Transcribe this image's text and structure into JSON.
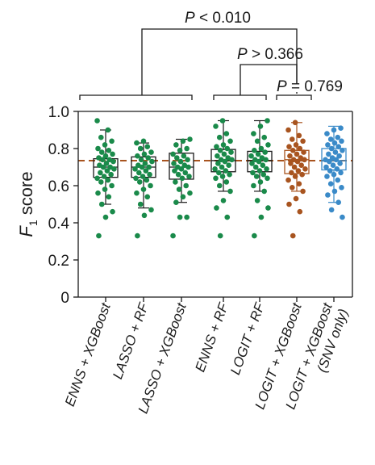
{
  "chart_data": {
    "type": "box",
    "ylabel": "F",
    "ylabel_subscript": "1",
    "ylabel_suffix": " score",
    "ylim": [
      0,
      1.0
    ],
    "yticks": [
      0,
      0.2,
      0.4,
      0.6,
      0.8,
      1.0
    ],
    "ytick_labels": [
      "0",
      "0.2",
      "0.4",
      "0.6",
      "0.8",
      "1.0"
    ],
    "reference_line": {
      "y": 0.735,
      "color": "#a8541f",
      "style": "dashed"
    },
    "categories": [
      "ENNS + XGBoost",
      "LASSO + RF",
      "LASSO + XGBoost",
      "ENNS + RF",
      "LOGIT + RF",
      "LOGIT + XGBoost",
      "LOGIT + XGBoost (SNV only)"
    ],
    "category_lines": [
      [
        "ENNS + XGBoost"
      ],
      [
        "LASSO + RF"
      ],
      [
        "LASSO + XGBoost"
      ],
      [
        "ENNS + RF"
      ],
      [
        "LOGIT + RF"
      ],
      [
        "LOGIT + XGBoost"
      ],
      [
        "LOGIT + XGBoost",
        "(SNV only)"
      ]
    ],
    "colors": [
      "#1a8a4a",
      "#1a8a4a",
      "#1a8a4a",
      "#1a8a4a",
      "#1a8a4a",
      "#a8541f",
      "#3a8ac8"
    ],
    "box_stats": [
      {
        "min": 0.5,
        "q1": 0.645,
        "median": 0.7,
        "q3": 0.745,
        "max": 0.9
      },
      {
        "min": 0.48,
        "q1": 0.645,
        "median": 0.7,
        "q3": 0.755,
        "max": 0.83
      },
      {
        "min": 0.51,
        "q1": 0.635,
        "median": 0.7,
        "q3": 0.775,
        "max": 0.85
      },
      {
        "min": 0.57,
        "q1": 0.675,
        "median": 0.735,
        "q3": 0.795,
        "max": 0.95
      },
      {
        "min": 0.57,
        "q1": 0.675,
        "median": 0.735,
        "q3": 0.785,
        "max": 0.95
      },
      {
        "min": 0.57,
        "q1": 0.665,
        "median": 0.74,
        "q3": 0.79,
        "max": 0.94
      },
      {
        "min": 0.51,
        "q1": 0.685,
        "median": 0.735,
        "q3": 0.8,
        "max": 0.92
      }
    ],
    "points": [
      [
        0.95,
        0.9,
        0.86,
        0.84,
        0.82,
        0.8,
        0.79,
        0.78,
        0.77,
        0.76,
        0.75,
        0.74,
        0.74,
        0.73,
        0.72,
        0.71,
        0.7,
        0.7,
        0.69,
        0.68,
        0.67,
        0.66,
        0.65,
        0.64,
        0.63,
        0.62,
        0.6,
        0.58,
        0.56,
        0.54,
        0.5,
        0.46,
        0.43,
        0.33
      ],
      [
        0.84,
        0.83,
        0.81,
        0.8,
        0.78,
        0.77,
        0.76,
        0.75,
        0.74,
        0.73,
        0.72,
        0.71,
        0.7,
        0.7,
        0.69,
        0.68,
        0.67,
        0.66,
        0.65,
        0.64,
        0.63,
        0.62,
        0.6,
        0.58,
        0.56,
        0.54,
        0.5,
        0.47,
        0.44,
        0.33
      ],
      [
        0.85,
        0.84,
        0.82,
        0.8,
        0.79,
        0.77,
        0.76,
        0.75,
        0.74,
        0.73,
        0.72,
        0.71,
        0.7,
        0.7,
        0.69,
        0.68,
        0.67,
        0.66,
        0.65,
        0.64,
        0.62,
        0.6,
        0.58,
        0.56,
        0.54,
        0.51,
        0.43,
        0.43,
        0.33
      ],
      [
        0.95,
        0.92,
        0.88,
        0.86,
        0.84,
        0.82,
        0.81,
        0.8,
        0.79,
        0.78,
        0.77,
        0.76,
        0.75,
        0.74,
        0.74,
        0.73,
        0.72,
        0.71,
        0.7,
        0.69,
        0.68,
        0.67,
        0.66,
        0.65,
        0.64,
        0.62,
        0.6,
        0.57,
        0.52,
        0.48,
        0.43,
        0.33
      ],
      [
        0.95,
        0.92,
        0.88,
        0.86,
        0.84,
        0.82,
        0.8,
        0.79,
        0.78,
        0.77,
        0.76,
        0.75,
        0.74,
        0.74,
        0.73,
        0.72,
        0.71,
        0.7,
        0.69,
        0.68,
        0.67,
        0.66,
        0.65,
        0.64,
        0.62,
        0.6,
        0.57,
        0.52,
        0.48,
        0.43,
        0.33
      ],
      [
        0.94,
        0.9,
        0.87,
        0.85,
        0.84,
        0.82,
        0.81,
        0.8,
        0.79,
        0.78,
        0.77,
        0.76,
        0.75,
        0.74,
        0.74,
        0.73,
        0.72,
        0.71,
        0.7,
        0.69,
        0.68,
        0.67,
        0.66,
        0.65,
        0.63,
        0.61,
        0.59,
        0.57,
        0.53,
        0.5,
        0.46,
        0.33
      ],
      [
        0.91,
        0.9,
        0.88,
        0.86,
        0.85,
        0.84,
        0.83,
        0.82,
        0.81,
        0.8,
        0.79,
        0.78,
        0.77,
        0.76,
        0.75,
        0.74,
        0.74,
        0.73,
        0.72,
        0.71,
        0.7,
        0.69,
        0.68,
        0.67,
        0.66,
        0.65,
        0.63,
        0.61,
        0.59,
        0.57,
        0.55,
        0.51,
        0.47,
        0.43
      ]
    ],
    "comparisons": [
      {
        "label_p": "P",
        "label_rest": " < 0.010",
        "group_a": [
          0,
          2
        ],
        "group_b": [
          5,
          6
        ]
      },
      {
        "label_p": "P",
        "label_rest": " > 0.366",
        "group_a": [
          3,
          4
        ],
        "group_b": [
          5,
          5
        ]
      },
      {
        "label_p": "P",
        "label_rest": " = 0.769",
        "group_a": [
          5,
          5
        ],
        "group_b": [
          6,
          6
        ]
      }
    ],
    "grid": false,
    "legend": "none"
  }
}
